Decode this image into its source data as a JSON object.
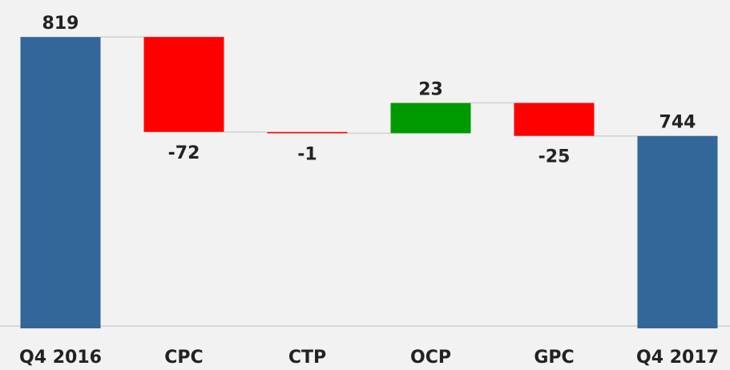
{
  "chart_data": {
    "type": "waterfall",
    "categories": [
      "Q4 2016",
      "CPC",
      "CTP",
      "OCP",
      "GPC",
      "Q4 2017"
    ],
    "values": [
      819,
      -72,
      -1,
      23,
      -25,
      744
    ],
    "colors": {
      "total": "#336699",
      "increase": "#009900",
      "decrease": "#ff0000"
    },
    "ylim": [
      600,
      847
    ]
  }
}
